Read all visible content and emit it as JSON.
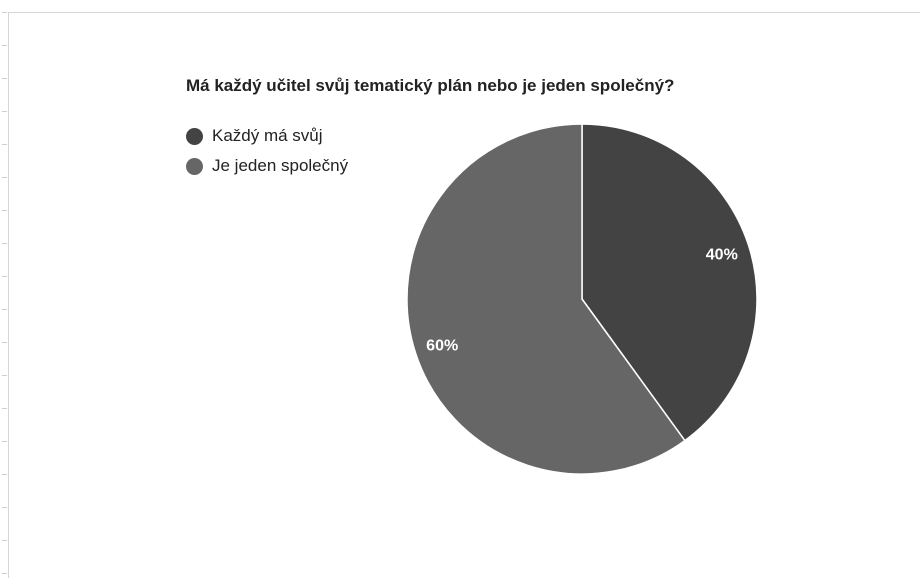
{
  "chart_data": {
    "type": "pie",
    "title": "Má každý učitel svůj tematický plán nebo je jeden společný?",
    "slices": [
      {
        "label": "Každý má svůj",
        "value": 40,
        "display": "40%",
        "color": "#434343"
      },
      {
        "label": "Je jeden společný",
        "value": 60,
        "display": "60%",
        "color": "#666666"
      }
    ],
    "legend_position": "top-left"
  }
}
